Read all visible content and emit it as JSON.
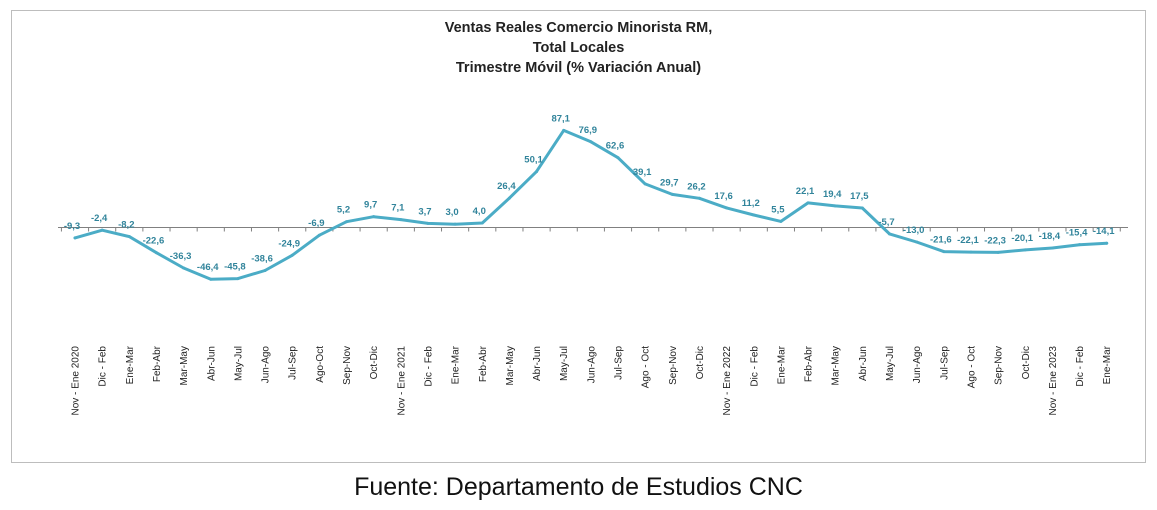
{
  "chart_data": {
    "type": "line",
    "title_lines": [
      "Ventas Reales Comercio Minorista RM,",
      "Total Locales",
      "Trimestre Móvil (% Variación Anual)"
    ],
    "xlabel": "",
    "ylabel": "",
    "grid": false,
    "legend": "none",
    "categories": [
      "Nov - Ene 2020",
      "Dic - Feb",
      "Ene-Mar",
      "Feb-Abr",
      "Mar-May",
      "Abr-Jun",
      "May-Jul",
      "Jun-Ago",
      "Jul-Sep",
      "Ago-Oct",
      "Sep-Nov",
      "Oct-Dic",
      "Nov - Ene 2021",
      "Dic - Feb",
      "Ene-Mar",
      "Feb-Abr",
      "Mar-May",
      "Abr-Jun",
      "May-Jul",
      "Jun-Ago",
      "Jul-Sep",
      "Ago - Oct",
      "Sep-Nov",
      "Oct-Dic",
      "Nov - Ene 2022",
      "Dic - Feb",
      "Ene-Mar",
      "Feb-Abr",
      "Mar-May",
      "Abr-Jun",
      "May-Jul",
      "Jun-Ago",
      "Jul-Sep",
      "Ago - Oct",
      "Sep-Nov",
      "Oct-Dic",
      "Nov - Ene 2023",
      "Dic - Feb",
      "Ene-Mar"
    ],
    "series": [
      {
        "values": [
          -9.3,
          -2.4,
          -8.2,
          -22.6,
          -36.3,
          -46.4,
          -45.8,
          -38.6,
          -24.9,
          -6.9,
          5.2,
          9.7,
          7.1,
          3.7,
          3.0,
          4.0,
          26.4,
          50.1,
          87.1,
          76.9,
          62.6,
          39.1,
          29.7,
          26.2,
          17.6,
          11.2,
          5.5,
          22.1,
          19.4,
          17.5,
          -5.7,
          -13.0,
          -21.6,
          -22.1,
          -22.3,
          -20.1,
          -18.4,
          -15.4,
          -14.1
        ],
        "labels": [
          "-9,3",
          "-2,4",
          "-8,2",
          "-22,6",
          "-36,3",
          "-46,4",
          "-45,8",
          "-38,6",
          "-24,9",
          "-6,9",
          "5,2",
          "9,7",
          "7,1",
          "3,7",
          "3,0",
          "4,0",
          "26,4",
          "50,1",
          "87,1",
          "76,9",
          "62,6",
          "39,1",
          "29,7",
          "26,2",
          "17,6",
          "11,2",
          "5,5",
          "22,1",
          "19,4",
          "17,5",
          "-5,7",
          "-13,0",
          "-21,6",
          "-22,1",
          "-22,3",
          "-20,1",
          "-18,4",
          "-15,4",
          "-14,1"
        ]
      }
    ],
    "colors": {
      "line": "#4BACC6",
      "label": "#31849B",
      "axis": "#808080"
    }
  },
  "source_text": "Fuente: Departamento de Estudios CNC"
}
